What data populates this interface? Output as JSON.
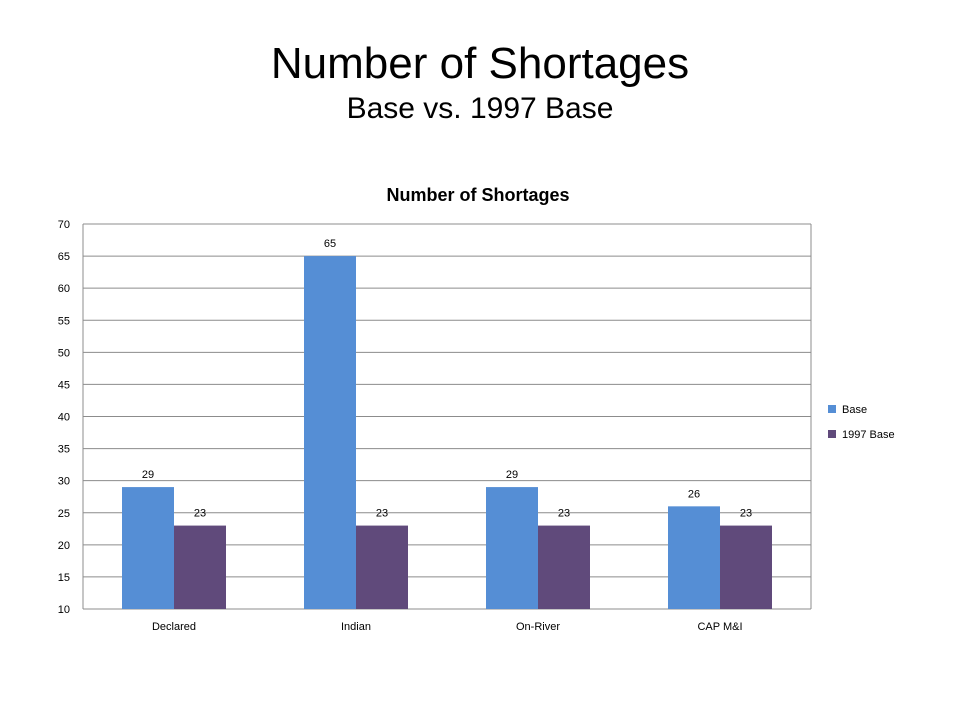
{
  "slide": {
    "title": "Number of Shortages",
    "subtitle": "Base vs. 1997 Base"
  },
  "colors": {
    "base": "#558ED5",
    "base_1997": "#604A7B",
    "grid": "#8C8C8C"
  },
  "chart_data": {
    "type": "bar",
    "title": "Number of Shortages",
    "xlabel": "",
    "ylabel": "",
    "categories": [
      "Declared",
      "Indian",
      "On-River",
      "CAP M&I"
    ],
    "series": [
      {
        "name": "Base",
        "values": [
          29,
          65,
          29,
          26
        ]
      },
      {
        "name": "1997 Base",
        "values": [
          23,
          23,
          23,
          23
        ]
      }
    ],
    "ylim": [
      10,
      70
    ],
    "yticks": [
      10,
      15,
      20,
      25,
      30,
      35,
      40,
      45,
      50,
      55,
      60,
      65,
      70
    ],
    "grid": true,
    "legend": "right",
    "data_labels": true
  }
}
